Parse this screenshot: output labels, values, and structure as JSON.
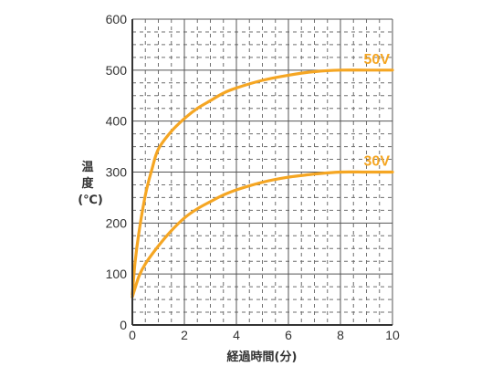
{
  "chart_data": {
    "type": "line",
    "xlabel": "経過時間(分)",
    "ylabel": [
      "温",
      "度",
      "(℃)"
    ],
    "xlim": [
      0,
      10
    ],
    "ylim": [
      0,
      600
    ],
    "xticks": [
      "0",
      "2",
      "4",
      "6",
      "8",
      "10"
    ],
    "yticks": [
      "0",
      "100",
      "200",
      "300",
      "400",
      "500",
      "600"
    ],
    "grid": true,
    "color": "#f5a623",
    "series": [
      {
        "name": "50V",
        "x": [
          0,
          0.1,
          0.25,
          0.5,
          0.75,
          1,
          1.5,
          2,
          2.5,
          3,
          3.5,
          4,
          5,
          6,
          7,
          8,
          9,
          10
        ],
        "y": [
          60,
          120,
          180,
          255,
          305,
          345,
          380,
          405,
          425,
          440,
          455,
          465,
          480,
          490,
          497,
          500,
          500,
          500
        ]
      },
      {
        "name": "30V",
        "x": [
          0,
          0.25,
          0.5,
          1,
          1.5,
          2,
          2.5,
          3,
          3.5,
          4,
          5,
          6,
          7,
          8,
          9,
          10
        ],
        "y": [
          55,
          95,
          120,
          155,
          185,
          210,
          228,
          242,
          255,
          265,
          280,
          290,
          296,
          300,
          300,
          300
        ]
      }
    ]
  }
}
